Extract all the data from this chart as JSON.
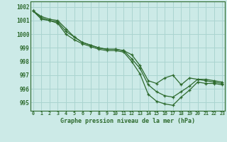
{
  "background_color": "#cceae7",
  "grid_color": "#aad4d0",
  "line_color": "#2d6a2d",
  "title": "Graphe pression niveau de la mer (hPa)",
  "x_labels": [
    "0",
    "1",
    "2",
    "3",
    "4",
    "5",
    "6",
    "7",
    "8",
    "9",
    "10",
    "11",
    "12",
    "13",
    "14",
    "15",
    "16",
    "17",
    "18",
    "19",
    "20",
    "21",
    "22",
    "23"
  ],
  "ylim": [
    994.4,
    1002.4
  ],
  "yticks": [
    995,
    996,
    997,
    998,
    999,
    1000,
    1001,
    1002
  ],
  "series1": [
    1001.7,
    1001.3,
    1001.1,
    1001.0,
    1000.4,
    999.8,
    999.4,
    999.2,
    999.0,
    998.9,
    998.9,
    998.8,
    998.5,
    997.7,
    996.6,
    996.4,
    996.8,
    997.0,
    996.3,
    996.8,
    996.7,
    996.7,
    996.6,
    996.5
  ],
  "series2": [
    1001.7,
    1001.2,
    1001.0,
    1000.9,
    1000.2,
    999.8,
    999.4,
    999.2,
    999.0,
    998.9,
    998.9,
    998.8,
    998.2,
    997.5,
    996.3,
    995.8,
    995.5,
    995.4,
    995.8,
    996.2,
    996.7,
    996.6,
    996.5,
    996.4
  ],
  "series3": [
    1001.7,
    1001.1,
    1001.0,
    1000.8,
    1000.0,
    999.6,
    999.3,
    999.1,
    998.9,
    998.8,
    998.8,
    998.7,
    998.0,
    997.1,
    995.6,
    995.1,
    994.9,
    994.8,
    995.4,
    995.9,
    996.5,
    996.4,
    996.4,
    996.3
  ]
}
